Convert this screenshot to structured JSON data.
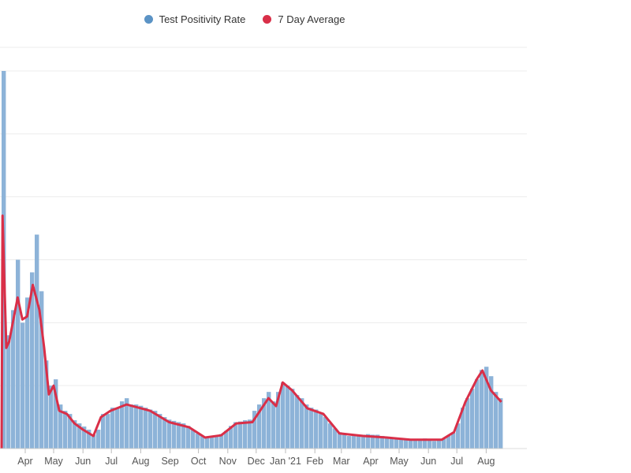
{
  "chart_data": {
    "type": "bar",
    "title": "",
    "xlabel": "",
    "ylabel": "",
    "ylim": [
      0,
      60
    ],
    "grid": true,
    "legend_position": "top-center",
    "x_start_date": "2020-03-07",
    "legend": [
      {
        "label": "Test Positivity Rate",
        "color": "#5b93c5"
      },
      {
        "label": "7 Day Average",
        "color": "#d92f48"
      }
    ],
    "x_ticks": [
      {
        "label": "Apr",
        "day": 25
      },
      {
        "label": "May",
        "day": 55
      },
      {
        "label": "Jun",
        "day": 86
      },
      {
        "label": "Jul",
        "day": 116
      },
      {
        "label": "Aug",
        "day": 147
      },
      {
        "label": "Sep",
        "day": 178
      },
      {
        "label": "Oct",
        "day": 208
      },
      {
        "label": "Nov",
        "day": 239
      },
      {
        "label": "Dec",
        "day": 269
      },
      {
        "label": "Jan '21",
        "day": 300
      },
      {
        "label": "Feb",
        "day": 331
      },
      {
        "label": "Mar",
        "day": 359
      },
      {
        "label": "Apr",
        "day": 390
      },
      {
        "label": "May",
        "day": 420
      },
      {
        "label": "Jun",
        "day": 451
      },
      {
        "label": "Jul",
        "day": 481
      },
      {
        "label": "Aug",
        "day": 512
      }
    ],
    "series": [
      {
        "name": "Test Positivity Rate",
        "type": "bar",
        "day_step": 5,
        "values": [
          60,
          18,
          22,
          30,
          20,
          24,
          28,
          34,
          25,
          14,
          10,
          11,
          7,
          6,
          5.5,
          4.5,
          4,
          3.5,
          3,
          2.2,
          3,
          5.5,
          5.5,
          6.5,
          6.5,
          7.5,
          8,
          7,
          7,
          6.8,
          6.5,
          6.2,
          6,
          5.5,
          5,
          4.6,
          4.4,
          4.2,
          4,
          3.6,
          3,
          2.4,
          2,
          1.8,
          1.9,
          2,
          2.3,
          2.8,
          3.6,
          4.2,
          4.3,
          4.5,
          4.6,
          6,
          7,
          8,
          9,
          7.5,
          9,
          10.5,
          10,
          9.5,
          8.5,
          8,
          7,
          6.5,
          6.2,
          5.5,
          5,
          4,
          3.2,
          2.6,
          2.2,
          2,
          2,
          2.1,
          2.2,
          2.3,
          2.2,
          2.2,
          2,
          1.8,
          1.6,
          1.6,
          1.5,
          1.4,
          1.4,
          1.4,
          1.3,
          1.6,
          1.4,
          1.2,
          1.3,
          1.6,
          2,
          2.5,
          4,
          6.5,
          8,
          9.5,
          11,
          12.5,
          13,
          11.5,
          9,
          8
        ]
      },
      {
        "name": "7 Day Average",
        "type": "line",
        "points": [
          [
            0,
            0
          ],
          [
            1,
            37
          ],
          [
            5,
            16
          ],
          [
            8,
            17
          ],
          [
            17,
            24
          ],
          [
            22,
            20.5
          ],
          [
            27,
            21
          ],
          [
            33,
            26
          ],
          [
            40,
            22
          ],
          [
            45,
            16
          ],
          [
            50,
            8.6
          ],
          [
            55,
            10
          ],
          [
            61,
            6
          ],
          [
            69,
            5.5
          ],
          [
            77,
            4
          ],
          [
            86,
            3
          ],
          [
            97,
            2
          ],
          [
            105,
            5
          ],
          [
            115,
            6
          ],
          [
            132,
            7
          ],
          [
            157,
            6
          ],
          [
            177,
            4.2
          ],
          [
            198,
            3.4
          ],
          [
            215,
            1.75
          ],
          [
            232,
            2.1
          ],
          [
            248,
            4
          ],
          [
            265,
            4.2
          ],
          [
            282,
            8
          ],
          [
            290,
            6.75
          ],
          [
            297,
            10.5
          ],
          [
            307,
            9.25
          ],
          [
            323,
            6.4
          ],
          [
            340,
            5.5
          ],
          [
            357,
            2.4
          ],
          [
            382,
            2
          ],
          [
            407,
            1.75
          ],
          [
            432,
            1.4
          ],
          [
            465,
            1.4
          ],
          [
            478,
            2.6
          ],
          [
            490,
            7.4
          ],
          [
            502,
            11
          ],
          [
            508,
            12.4
          ],
          [
            517,
            9.25
          ],
          [
            528,
            7.4
          ]
        ]
      }
    ]
  }
}
